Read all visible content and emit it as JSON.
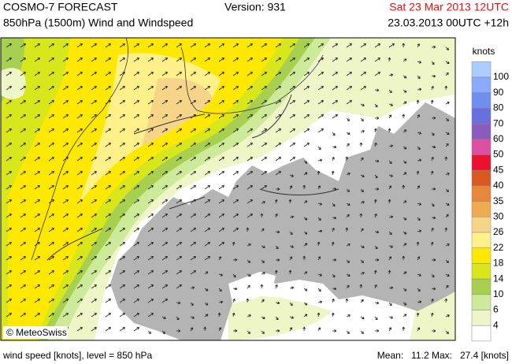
{
  "header": {
    "title": "COSMO-7 FORECAST",
    "subtitle": "850hPa (1500m) Wind and Windspeed",
    "version": "Version: 931",
    "valid_time": "Sat 23 Mar 2013 12UTC",
    "run_time": "23.03.2013 00UTC +12h"
  },
  "map": {
    "copyright": "© MeteoSwiss"
  },
  "legend": {
    "unit": "knots",
    "top_color": "#aaccff",
    "levels": [
      {
        "value": 100,
        "color": "#88aaff"
      },
      {
        "value": 90,
        "color": "#6f8ff0"
      },
      {
        "value": 80,
        "color": "#6a6fe0"
      },
      {
        "value": 70,
        "color": "#8a5cc0"
      },
      {
        "value": 60,
        "color": "#dd4fa0"
      },
      {
        "value": 50,
        "color": "#ee1030"
      },
      {
        "value": 45,
        "color": "#d85a20"
      },
      {
        "value": 40,
        "color": "#e8863a"
      },
      {
        "value": 35,
        "color": "#f0aa50"
      },
      {
        "value": 30,
        "color": "#f6d488"
      },
      {
        "value": 26,
        "color": "#fff08a"
      },
      {
        "value": 22,
        "color": "#ffe800"
      },
      {
        "value": 18,
        "color": "#d8e61c"
      },
      {
        "value": 14,
        "color": "#a8d050"
      },
      {
        "value": 10,
        "color": "#ccea9a"
      },
      {
        "value": 6,
        "color": "#eef6c8"
      },
      {
        "value": 4,
        "color": "#ffffff"
      }
    ]
  },
  "footer": {
    "left": "wind speed [knots], level = 850 hPa",
    "right": "Mean:   11.2 Max:   27.4 [knots]"
  }
}
